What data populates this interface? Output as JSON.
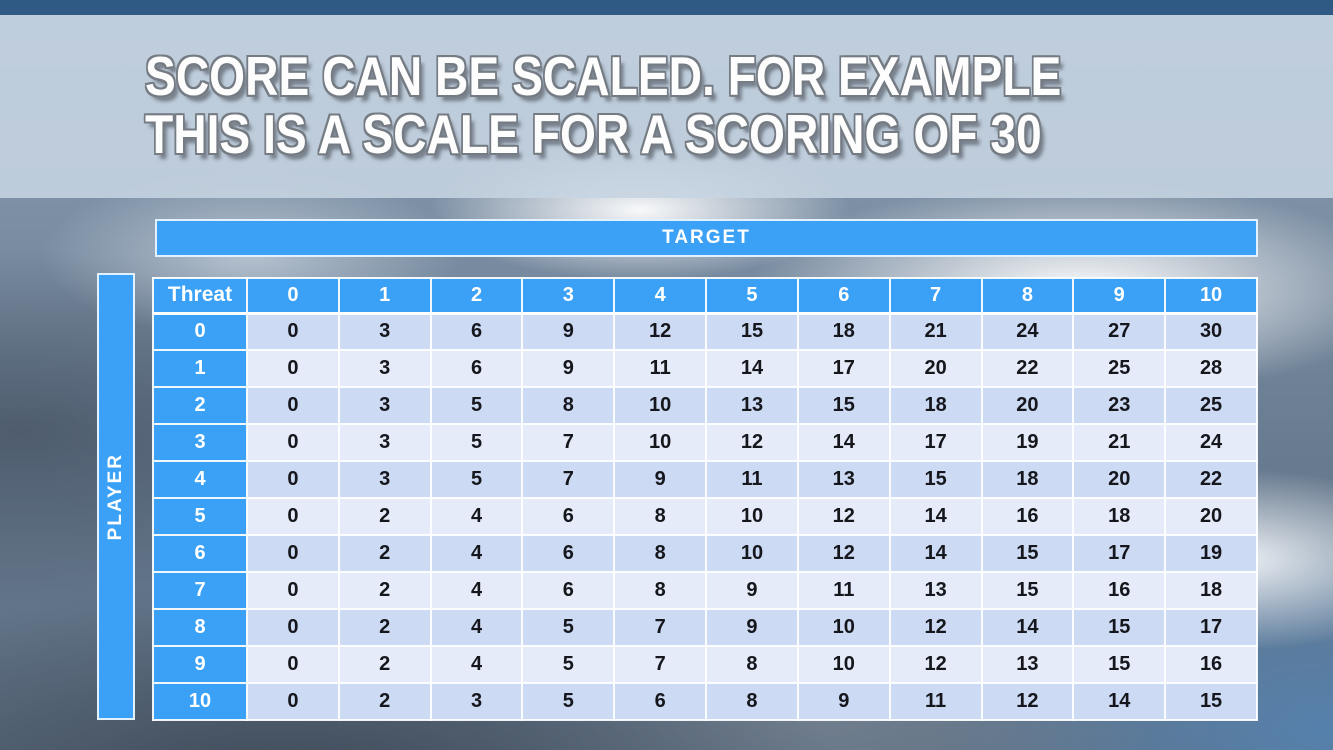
{
  "slide": {
    "title_line1": "SCORE CAN BE SCALED. FOR EXAMPLE",
    "title_line2": "THIS IS A SCALE FOR A SCORING OF 30"
  },
  "matrix": {
    "target_label": "TARGET",
    "player_label": "PLAYER",
    "corner_label": "Threat",
    "column_headers": [
      "0",
      "1",
      "2",
      "3",
      "4",
      "5",
      "6",
      "7",
      "8",
      "9",
      "10"
    ],
    "row_headers": [
      "0",
      "1",
      "2",
      "3",
      "4",
      "5",
      "6",
      "7",
      "8",
      "9",
      "10"
    ],
    "rows": [
      [
        0,
        3,
        6,
        9,
        12,
        15,
        18,
        21,
        24,
        27,
        30
      ],
      [
        0,
        3,
        6,
        9,
        11,
        14,
        17,
        20,
        22,
        25,
        28
      ],
      [
        0,
        3,
        5,
        8,
        10,
        13,
        15,
        18,
        20,
        23,
        25
      ],
      [
        0,
        3,
        5,
        7,
        10,
        12,
        14,
        17,
        19,
        21,
        24
      ],
      [
        0,
        3,
        5,
        7,
        9,
        11,
        13,
        15,
        18,
        20,
        22
      ],
      [
        0,
        2,
        4,
        6,
        8,
        10,
        12,
        14,
        16,
        18,
        20
      ],
      [
        0,
        2,
        4,
        6,
        8,
        10,
        12,
        14,
        15,
        17,
        19
      ],
      [
        0,
        2,
        4,
        6,
        8,
        9,
        11,
        13,
        15,
        16,
        18
      ],
      [
        0,
        2,
        4,
        5,
        7,
        9,
        10,
        12,
        14,
        15,
        17
      ],
      [
        0,
        2,
        4,
        5,
        7,
        8,
        10,
        12,
        13,
        15,
        16
      ],
      [
        0,
        2,
        3,
        5,
        6,
        8,
        9,
        11,
        12,
        14,
        15
      ]
    ]
  },
  "colors": {
    "blue": "#3aa1f6",
    "row_dark": "#cddaf4",
    "row_light": "#e6ebf9",
    "top_bar": "#2f5a84",
    "band": "rgba(198,212,225,0.88)"
  }
}
